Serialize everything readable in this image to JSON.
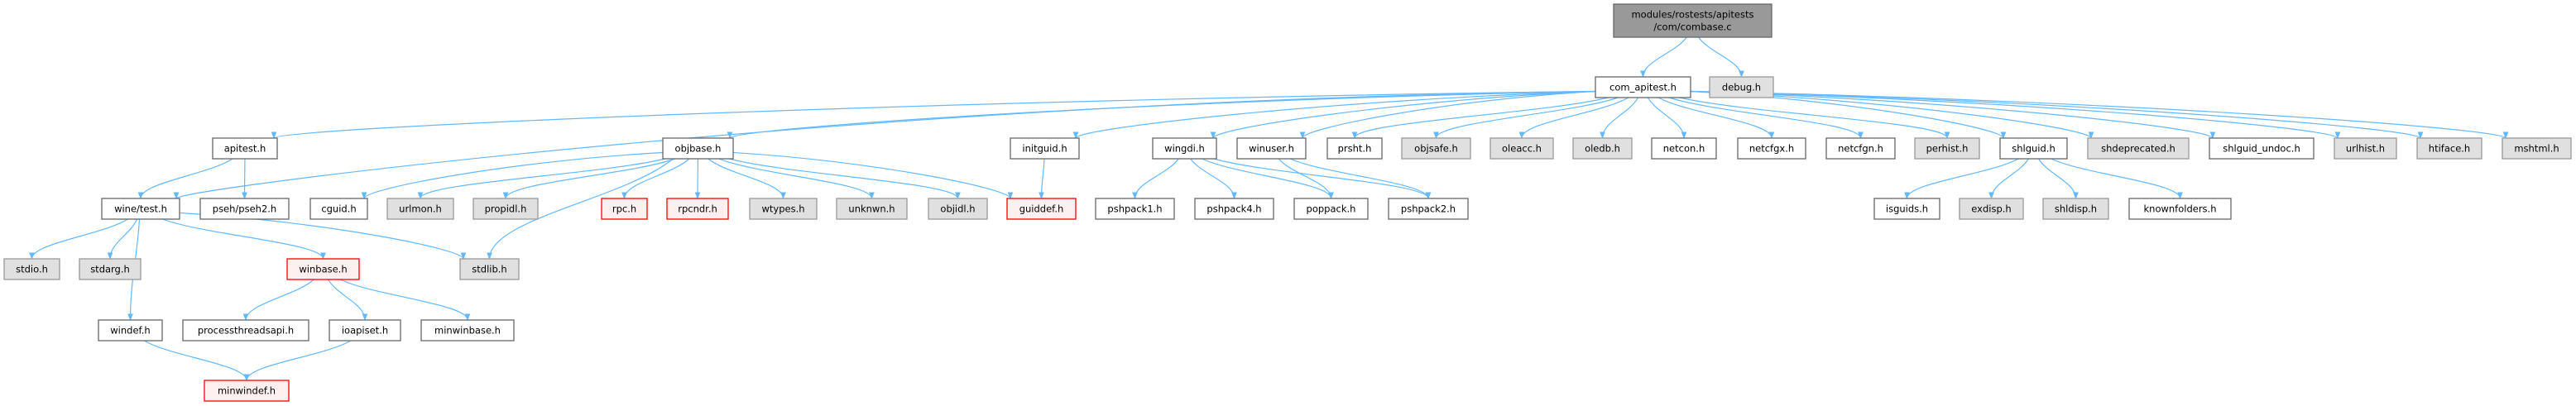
{
  "colors": {
    "edge": "#63b8ff",
    "root_fill": "#999999",
    "root_border": "#666666",
    "normal_fill": "#ffffff",
    "normal_border": "#666666",
    "external_fill": "#e0e0e0",
    "external_border": "#999999",
    "missing_fill": "#fff0f0",
    "missing_border": "#ff0000"
  },
  "nodes": [
    {
      "id": "root",
      "label": [
        "modules/rostests/apitests",
        "/com/combase.c"
      ],
      "kind": "root"
    },
    {
      "id": "com_apitest",
      "label": [
        "com_apitest.h"
      ],
      "kind": "normal"
    },
    {
      "id": "debug",
      "label": [
        "debug.h"
      ],
      "kind": "external"
    },
    {
      "id": "apitest",
      "label": [
        "apitest.h"
      ],
      "kind": "normal"
    },
    {
      "id": "objbase",
      "label": [
        "objbase.h"
      ],
      "kind": "normal"
    },
    {
      "id": "initguid",
      "label": [
        "initguid.h"
      ],
      "kind": "normal"
    },
    {
      "id": "wingdi",
      "label": [
        "wingdi.h"
      ],
      "kind": "normal"
    },
    {
      "id": "winuser",
      "label": [
        "winuser.h"
      ],
      "kind": "normal"
    },
    {
      "id": "prsht",
      "label": [
        "prsht.h"
      ],
      "kind": "normal"
    },
    {
      "id": "objsafe",
      "label": [
        "objsafe.h"
      ],
      "kind": "external"
    },
    {
      "id": "oleacc",
      "label": [
        "oleacc.h"
      ],
      "kind": "external"
    },
    {
      "id": "oledb",
      "label": [
        "oledb.h"
      ],
      "kind": "external"
    },
    {
      "id": "netcon",
      "label": [
        "netcon.h"
      ],
      "kind": "normal"
    },
    {
      "id": "netcfgx",
      "label": [
        "netcfgx.h"
      ],
      "kind": "normal"
    },
    {
      "id": "netcfgn",
      "label": [
        "netcfgn.h"
      ],
      "kind": "normal"
    },
    {
      "id": "perhist",
      "label": [
        "perhist.h"
      ],
      "kind": "external"
    },
    {
      "id": "shlguid",
      "label": [
        "shlguid.h"
      ],
      "kind": "normal"
    },
    {
      "id": "shdeprecated",
      "label": [
        "shdeprecated.h"
      ],
      "kind": "external"
    },
    {
      "id": "shlguid_undoc",
      "label": [
        "shlguid_undoc.h"
      ],
      "kind": "normal"
    },
    {
      "id": "urlhist",
      "label": [
        "urlhist.h"
      ],
      "kind": "external"
    },
    {
      "id": "htiface",
      "label": [
        "htiface.h"
      ],
      "kind": "external"
    },
    {
      "id": "mshtml",
      "label": [
        "mshtml.h"
      ],
      "kind": "external"
    },
    {
      "id": "winetest",
      "label": [
        "wine/test.h"
      ],
      "kind": "normal"
    },
    {
      "id": "pseh2",
      "label": [
        "pseh/pseh2.h"
      ],
      "kind": "normal"
    },
    {
      "id": "cguid",
      "label": [
        "cguid.h"
      ],
      "kind": "normal"
    },
    {
      "id": "urlmon",
      "label": [
        "urlmon.h"
      ],
      "kind": "external"
    },
    {
      "id": "propidl",
      "label": [
        "propidl.h"
      ],
      "kind": "external"
    },
    {
      "id": "rpc",
      "label": [
        "rpc.h"
      ],
      "kind": "missing"
    },
    {
      "id": "rpcndr",
      "label": [
        "rpcndr.h"
      ],
      "kind": "missing"
    },
    {
      "id": "wtypes",
      "label": [
        "wtypes.h"
      ],
      "kind": "external"
    },
    {
      "id": "unknwn",
      "label": [
        "unknwn.h"
      ],
      "kind": "external"
    },
    {
      "id": "objidl",
      "label": [
        "objidl.h"
      ],
      "kind": "external"
    },
    {
      "id": "guiddef",
      "label": [
        "guiddef.h"
      ],
      "kind": "missing"
    },
    {
      "id": "pshpack1",
      "label": [
        "pshpack1.h"
      ],
      "kind": "normal"
    },
    {
      "id": "pshpack4",
      "label": [
        "pshpack4.h"
      ],
      "kind": "normal"
    },
    {
      "id": "poppack",
      "label": [
        "poppack.h"
      ],
      "kind": "normal"
    },
    {
      "id": "pshpack2",
      "label": [
        "pshpack2.h"
      ],
      "kind": "normal"
    },
    {
      "id": "isguids",
      "label": [
        "isguids.h"
      ],
      "kind": "normal"
    },
    {
      "id": "exdisp",
      "label": [
        "exdisp.h"
      ],
      "kind": "external"
    },
    {
      "id": "shldisp",
      "label": [
        "shldisp.h"
      ],
      "kind": "external"
    },
    {
      "id": "knownfolders",
      "label": [
        "knownfolders.h"
      ],
      "kind": "normal"
    },
    {
      "id": "stdio",
      "label": [
        "stdio.h"
      ],
      "kind": "external"
    },
    {
      "id": "stdarg",
      "label": [
        "stdarg.h"
      ],
      "kind": "external"
    },
    {
      "id": "winbase",
      "label": [
        "winbase.h"
      ],
      "kind": "missing"
    },
    {
      "id": "stdlib",
      "label": [
        "stdlib.h"
      ],
      "kind": "external"
    },
    {
      "id": "windef",
      "label": [
        "windef.h"
      ],
      "kind": "normal"
    },
    {
      "id": "processthreadsapi",
      "label": [
        "processthreadsapi.h"
      ],
      "kind": "normal"
    },
    {
      "id": "ioapiset",
      "label": [
        "ioapiset.h"
      ],
      "kind": "normal"
    },
    {
      "id": "minwinbase",
      "label": [
        "minwinbase.h"
      ],
      "kind": "normal"
    },
    {
      "id": "minwindef",
      "label": [
        "minwindef.h"
      ],
      "kind": "missing"
    }
  ],
  "edges": [
    [
      "root",
      "com_apitest"
    ],
    [
      "root",
      "debug"
    ],
    [
      "com_apitest",
      "winetest"
    ],
    [
      "com_apitest",
      "apitest"
    ],
    [
      "com_apitest",
      "objbase"
    ],
    [
      "com_apitest",
      "initguid"
    ],
    [
      "com_apitest",
      "wingdi"
    ],
    [
      "com_apitest",
      "winuser"
    ],
    [
      "com_apitest",
      "prsht"
    ],
    [
      "com_apitest",
      "objsafe"
    ],
    [
      "com_apitest",
      "oleacc"
    ],
    [
      "com_apitest",
      "oledb"
    ],
    [
      "com_apitest",
      "netcon"
    ],
    [
      "com_apitest",
      "netcfgx"
    ],
    [
      "com_apitest",
      "netcfgn"
    ],
    [
      "com_apitest",
      "perhist"
    ],
    [
      "com_apitest",
      "shlguid"
    ],
    [
      "com_apitest",
      "shdeprecated"
    ],
    [
      "com_apitest",
      "shlguid_undoc"
    ],
    [
      "com_apitest",
      "urlhist"
    ],
    [
      "com_apitest",
      "htiface"
    ],
    [
      "com_apitest",
      "mshtml"
    ],
    [
      "apitest",
      "winetest"
    ],
    [
      "apitest",
      "pseh2"
    ],
    [
      "objbase",
      "cguid"
    ],
    [
      "objbase",
      "urlmon"
    ],
    [
      "objbase",
      "propidl"
    ],
    [
      "objbase",
      "stdlib"
    ],
    [
      "objbase",
      "rpc"
    ],
    [
      "objbase",
      "rpcndr"
    ],
    [
      "objbase",
      "wtypes"
    ],
    [
      "objbase",
      "unknwn"
    ],
    [
      "objbase",
      "objidl"
    ],
    [
      "objbase",
      "guiddef"
    ],
    [
      "initguid",
      "guiddef"
    ],
    [
      "wingdi",
      "pshpack1"
    ],
    [
      "wingdi",
      "pshpack4"
    ],
    [
      "wingdi",
      "poppack"
    ],
    [
      "wingdi",
      "pshpack2"
    ],
    [
      "winuser",
      "poppack"
    ],
    [
      "winuser",
      "pshpack2"
    ],
    [
      "shlguid",
      "isguids"
    ],
    [
      "shlguid",
      "exdisp"
    ],
    [
      "shlguid",
      "shldisp"
    ],
    [
      "shlguid",
      "knownfolders"
    ],
    [
      "winetest",
      "stdio"
    ],
    [
      "winetest",
      "stdarg"
    ],
    [
      "winetest",
      "winbase"
    ],
    [
      "winetest",
      "stdlib"
    ],
    [
      "winetest",
      "windef"
    ],
    [
      "winbase",
      "processthreadsapi"
    ],
    [
      "winbase",
      "ioapiset"
    ],
    [
      "winbase",
      "minwinbase"
    ],
    [
      "windef",
      "minwindef"
    ],
    [
      "ioapiset",
      "minwindef"
    ]
  ]
}
